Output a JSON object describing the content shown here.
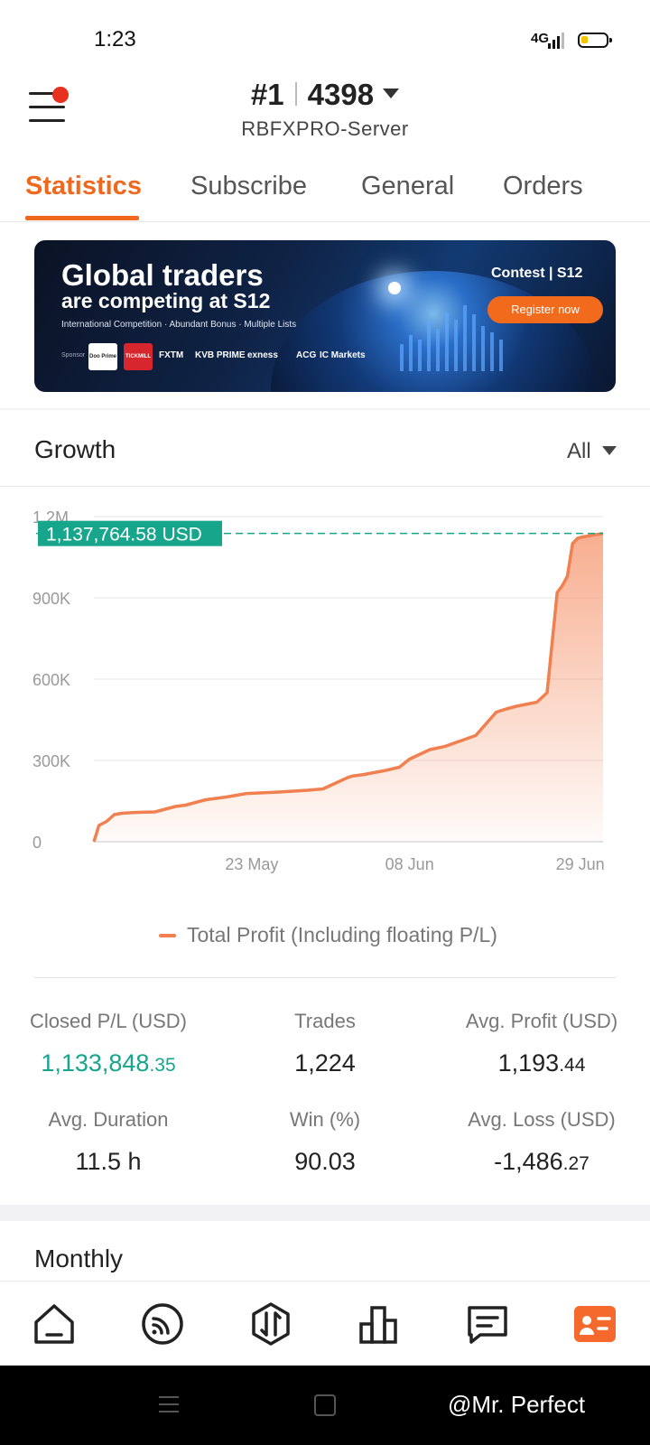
{
  "status_bar": {
    "time": "1:23",
    "network": "4G",
    "icons": [
      "signal-icon",
      "battery-icon"
    ]
  },
  "header": {
    "account_rank": "#1",
    "account_number": "4398",
    "server": "RBFXPRO-Server",
    "icons": [
      "menu-icon",
      "chevron-down-icon"
    ]
  },
  "tabs": [
    {
      "label": "Statistics",
      "active": true
    },
    {
      "label": "Subscribe",
      "active": false
    },
    {
      "label": "General",
      "active": false
    },
    {
      "label": "Orders",
      "active": false
    }
  ],
  "banner": {
    "title_line1": "Global traders",
    "title_line2": "are competing at S12",
    "subtitle": "International Competition · Abundant Bonus · Multiple Lists",
    "sponsor_label": "Sponsor",
    "sponsors": [
      "Doo Prime",
      "TICKMILL",
      "FXTM",
      "KVB PRIME",
      "exness",
      "ACG",
      "IC Markets"
    ],
    "contest_label": "Contest | S12",
    "register_label": "Register now"
  },
  "growth": {
    "title": "Growth",
    "range": "All",
    "current_value_label": "1,137,764.58 USD",
    "legend": "Total Profit (Including floating P/L)"
  },
  "chart_data": {
    "type": "area",
    "x_tick_labels": [
      "23 May",
      "08 Jun",
      "29 Jun"
    ],
    "y_tick_labels": [
      "0",
      "300K",
      "600K",
      "900K",
      "1.2M"
    ],
    "ylim": [
      0,
      1200000
    ],
    "grid": true,
    "line_color": "#f08050",
    "current_value": 1137764.58,
    "series": [
      {
        "name": "Total Profit (Including floating P/L)",
        "x_index": [
          0,
          0.01,
          0.025,
          0.04,
          0.055,
          0.08,
          0.12,
          0.16,
          0.18,
          0.22,
          0.24,
          0.26,
          0.3,
          0.36,
          0.37,
          0.42,
          0.45,
          0.5,
          0.51,
          0.53,
          0.57,
          0.6,
          0.62,
          0.66,
          0.69,
          0.72,
          0.75,
          0.79,
          0.81,
          0.83,
          0.87,
          0.89,
          0.91,
          0.92,
          0.93,
          0.94,
          0.95,
          0.96,
          1.0
        ],
        "values": [
          0,
          60000,
          75000,
          100000,
          105000,
          108000,
          110000,
          130000,
          135000,
          155000,
          160000,
          165000,
          178000,
          183000,
          184000,
          190000,
          195000,
          238000,
          243000,
          248000,
          262000,
          275000,
          305000,
          340000,
          352000,
          372000,
          392000,
          478000,
          490000,
          500000,
          515000,
          550000,
          920000,
          945000,
          980000,
          1100000,
          1120000,
          1125000,
          1137764.58
        ]
      }
    ]
  },
  "stats": {
    "closed_pl": {
      "label": "Closed P/L (USD)",
      "int": "1,133,848",
      "dec": ".35"
    },
    "trades": {
      "label": "Trades",
      "value": "1,224"
    },
    "avg_profit": {
      "label": "Avg. Profit (USD)",
      "int": "1,193",
      "dec": ".44"
    },
    "avg_duration": {
      "label": "Avg. Duration",
      "value": "11.5 h"
    },
    "win": {
      "label": "Win (%)",
      "value": "90.03"
    },
    "avg_loss": {
      "label": "Avg. Loss (USD)",
      "int": "-1,486",
      "dec": ".27"
    }
  },
  "monthly": {
    "title": "Monthly"
  },
  "bottom_nav": [
    "home-icon",
    "feed-icon",
    "trade-icon",
    "chart-icon",
    "message-icon",
    "profile-card-icon"
  ],
  "watermark": "@Mr. Perfect"
}
